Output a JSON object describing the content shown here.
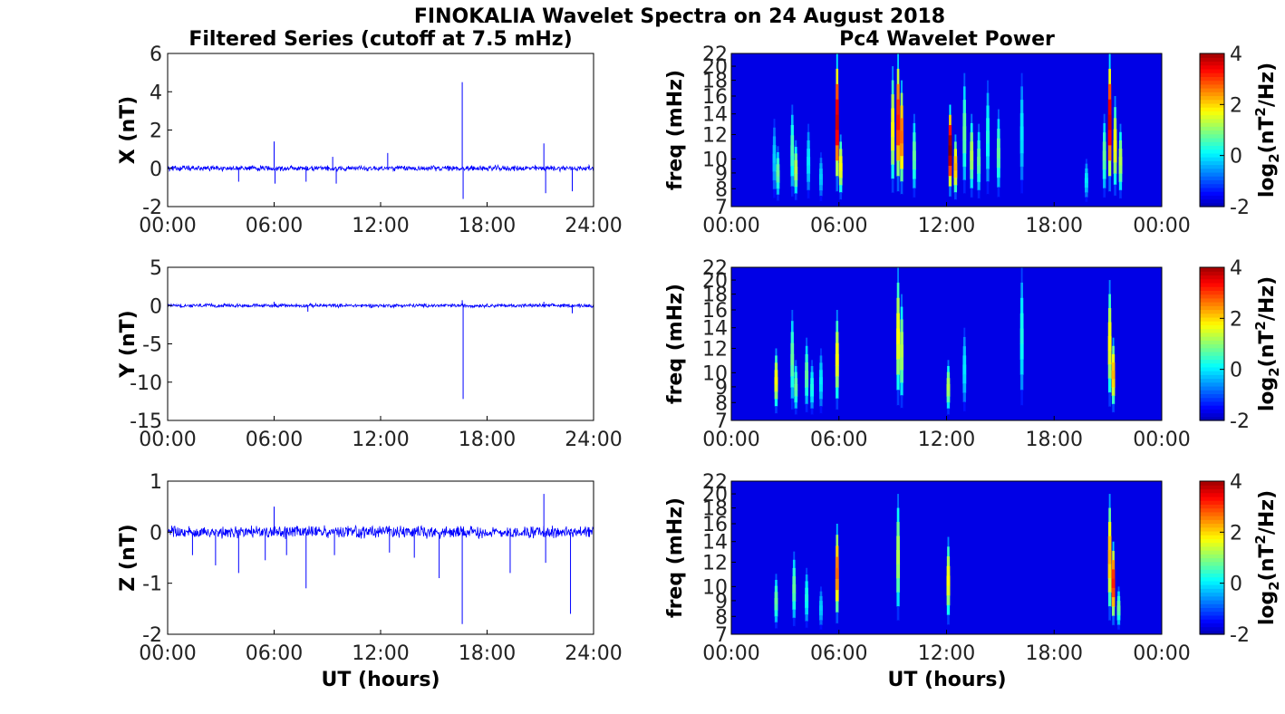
{
  "figure": {
    "title": "FINOKALIA Wavelet Spectra on 24 August 2018",
    "left_title": "Filtered Series (cutoff at 7.5 mHz)",
    "right_title": "Pc4 Wavelet Power",
    "xlabel": "UT (hours)"
  },
  "chart_data": [
    {
      "type": "line",
      "ylabel": "X (nT)",
      "ylim": [
        -2,
        6
      ],
      "yticks": [
        "-2",
        "0",
        "2",
        "4",
        "6"
      ],
      "yticks_values": [
        -2,
        0,
        2,
        4,
        6
      ],
      "xlim": [
        0,
        24
      ],
      "xticks": [
        "00:00",
        "06:00",
        "12:00",
        "18:00",
        "24:00"
      ],
      "xticks_values": [
        0,
        6,
        12,
        18,
        24
      ],
      "color": "#0000ff",
      "noise_amplitude": 0.12,
      "spikes": [
        {
          "t": 6.0,
          "y": 1.4
        },
        {
          "t": 6.05,
          "y": -0.8
        },
        {
          "t": 4.0,
          "y": -0.7
        },
        {
          "t": 7.8,
          "y": -0.7
        },
        {
          "t": 9.3,
          "y": 0.6
        },
        {
          "t": 9.5,
          "y": -0.8
        },
        {
          "t": 12.4,
          "y": 0.8
        },
        {
          "t": 16.6,
          "y": 4.5
        },
        {
          "t": 16.65,
          "y": -1.6
        },
        {
          "t": 21.2,
          "y": 1.3
        },
        {
          "t": 21.3,
          "y": -1.3
        },
        {
          "t": 22.8,
          "y": -1.2
        }
      ]
    },
    {
      "type": "line",
      "ylabel": "Y (nT)",
      "ylim": [
        -15,
        5
      ],
      "yticks": [
        "-15",
        "-10",
        "-5",
        "0",
        "5"
      ],
      "yticks_values": [
        -15,
        -10,
        -5,
        0,
        5
      ],
      "xlim": [
        0,
        24
      ],
      "xticks": [
        "00:00",
        "06:00",
        "12:00",
        "18:00",
        "24:00"
      ],
      "xticks_values": [
        0,
        6,
        12,
        18,
        24
      ],
      "color": "#0000ff",
      "noise_amplitude": 0.2,
      "spikes": [
        {
          "t": 6.0,
          "y": 0.5
        },
        {
          "t": 7.9,
          "y": -0.8
        },
        {
          "t": 16.6,
          "y": 0.7
        },
        {
          "t": 16.65,
          "y": -12.2
        },
        {
          "t": 21.2,
          "y": 0.5
        },
        {
          "t": 22.8,
          "y": -1.0
        }
      ]
    },
    {
      "type": "line",
      "ylabel": "Z (nT)",
      "ylim": [
        -2,
        1
      ],
      "yticks": [
        "-2",
        "-1",
        "0",
        "1"
      ],
      "yticks_values": [
        -2,
        -1,
        0,
        1
      ],
      "xlim": [
        0,
        24
      ],
      "xticks": [
        "00:00",
        "06:00",
        "12:00",
        "18:00",
        "24:00"
      ],
      "xticks_values": [
        0,
        6,
        12,
        18,
        24
      ],
      "color": "#0000ff",
      "noise_amplitude": 0.1,
      "spikes": [
        {
          "t": 1.4,
          "y": -0.45
        },
        {
          "t": 2.7,
          "y": -0.65
        },
        {
          "t": 4.0,
          "y": -0.8
        },
        {
          "t": 5.5,
          "y": -0.55
        },
        {
          "t": 6.0,
          "y": 0.5
        },
        {
          "t": 6.7,
          "y": -0.45
        },
        {
          "t": 7.8,
          "y": -1.1
        },
        {
          "t": 9.4,
          "y": -0.45
        },
        {
          "t": 12.5,
          "y": -0.4
        },
        {
          "t": 13.9,
          "y": -0.5
        },
        {
          "t": 15.3,
          "y": -0.9
        },
        {
          "t": 16.6,
          "y": -1.8
        },
        {
          "t": 19.3,
          "y": -0.8
        },
        {
          "t": 21.2,
          "y": 0.75
        },
        {
          "t": 21.3,
          "y": -0.6
        },
        {
          "t": 22.7,
          "y": -1.6
        }
      ]
    },
    {
      "type": "heatmap",
      "ylabel": "freq (mHz)",
      "ylim": [
        7,
        22
      ],
      "yticks": [
        "7",
        "8",
        "9",
        "10",
        "12",
        "14",
        "16",
        "18",
        "20",
        "22"
      ],
      "yticks_values": [
        7,
        8,
        9,
        10,
        12,
        14,
        16,
        18,
        20,
        22
      ],
      "xlim": [
        0,
        24
      ],
      "xticks": [
        "00:00",
        "06:00",
        "12:00",
        "18:00",
        "00:00"
      ],
      "xticks_values": [
        0,
        6,
        12,
        18,
        24
      ],
      "colorbar_label": "log2(nT²/Hz)",
      "clim": [
        -2,
        4
      ],
      "cticks": [
        "-2",
        "0",
        "2",
        "4"
      ],
      "cticks_values": [
        -2,
        0,
        2,
        4
      ],
      "background_value": -2,
      "streaks": [
        {
          "t": 2.4,
          "fmax": 13.5,
          "peak": -0.5
        },
        {
          "t": 2.6,
          "fmax": 11.0,
          "peak": 0.5
        },
        {
          "t": 3.4,
          "fmax": 15.0,
          "peak": 0.3
        },
        {
          "t": 3.6,
          "fmax": 11.5,
          "peak": 1.0
        },
        {
          "t": 4.3,
          "fmax": 13.0,
          "peak": -0.3
        },
        {
          "t": 5.0,
          "fmax": 10.5,
          "peak": -0.5
        },
        {
          "t": 5.9,
          "fmax": 22.0,
          "peak": 3.5
        },
        {
          "t": 6.1,
          "fmax": 12.0,
          "peak": 1.5
        },
        {
          "t": 9.0,
          "fmax": 20.0,
          "peak": 1.5
        },
        {
          "t": 9.3,
          "fmax": 22.0,
          "peak": 3.0
        },
        {
          "t": 9.5,
          "fmax": 18.0,
          "peak": 2.5
        },
        {
          "t": 10.2,
          "fmax": 14.0,
          "peak": 0.5
        },
        {
          "t": 12.2,
          "fmax": 15.0,
          "peak": 4.0
        },
        {
          "t": 12.5,
          "fmax": 12.0,
          "peak": 2.0
        },
        {
          "t": 13.0,
          "fmax": 19.0,
          "peak": 0.5
        },
        {
          "t": 13.4,
          "fmax": 14.0,
          "peak": 1.0
        },
        {
          "t": 13.8,
          "fmax": 13.0,
          "peak": 0.5
        },
        {
          "t": 14.3,
          "fmax": 18.0,
          "peak": 0.0
        },
        {
          "t": 14.9,
          "fmax": 14.5,
          "peak": 0.5
        },
        {
          "t": 16.2,
          "fmax": 19.0,
          "peak": -0.3
        },
        {
          "t": 19.8,
          "fmax": 10.0,
          "peak": -0.3
        },
        {
          "t": 20.8,
          "fmax": 14.0,
          "peak": 0.5
        },
        {
          "t": 21.1,
          "fmax": 22.0,
          "peak": 3.5
        },
        {
          "t": 21.4,
          "fmax": 16.0,
          "peak": 1.5
        },
        {
          "t": 21.7,
          "fmax": 13.0,
          "peak": 1.0
        }
      ]
    },
    {
      "type": "heatmap",
      "ylabel": "freq (mHz)",
      "ylim": [
        7,
        22
      ],
      "yticks": [
        "7",
        "8",
        "9",
        "10",
        "12",
        "14",
        "16",
        "18",
        "20",
        "22"
      ],
      "yticks_values": [
        7,
        8,
        9,
        10,
        12,
        14,
        16,
        18,
        20,
        22
      ],
      "xlim": [
        0,
        24
      ],
      "xticks": [
        "00:00",
        "06:00",
        "12:00",
        "18:00",
        "00:00"
      ],
      "xticks_values": [
        0,
        6,
        12,
        18,
        24
      ],
      "colorbar_label": "log2(nT²/Hz)",
      "clim": [
        -2,
        4
      ],
      "cticks": [
        "-2",
        "0",
        "2",
        "4"
      ],
      "cticks_values": [
        -2,
        0,
        2,
        4
      ],
      "background_value": -2,
      "streaks": [
        {
          "t": 2.5,
          "fmax": 12.0,
          "peak": 1.5
        },
        {
          "t": 3.4,
          "fmax": 16.0,
          "peak": 0.5
        },
        {
          "t": 3.6,
          "fmax": 11.0,
          "peak": 0.5
        },
        {
          "t": 4.2,
          "fmax": 13.0,
          "peak": 0.5
        },
        {
          "t": 4.5,
          "fmax": 11.0,
          "peak": 0.0
        },
        {
          "t": 5.0,
          "fmax": 12.0,
          "peak": -0.3
        },
        {
          "t": 5.9,
          "fmax": 16.0,
          "peak": 1.5
        },
        {
          "t": 9.3,
          "fmax": 22.0,
          "peak": 1.5
        },
        {
          "t": 9.5,
          "fmax": 18.0,
          "peak": 1.0
        },
        {
          "t": 12.1,
          "fmax": 11.0,
          "peak": 1.0
        },
        {
          "t": 13.0,
          "fmax": 14.0,
          "peak": -0.3
        },
        {
          "t": 16.2,
          "fmax": 22.0,
          "peak": 0.0
        },
        {
          "t": 21.1,
          "fmax": 20.0,
          "peak": 1.5
        },
        {
          "t": 21.3,
          "fmax": 13.0,
          "peak": 2.0
        }
      ]
    },
    {
      "type": "heatmap",
      "ylabel": "freq (mHz)",
      "ylim": [
        7,
        22
      ],
      "yticks": [
        "7",
        "8",
        "9",
        "10",
        "12",
        "14",
        "16",
        "18",
        "20",
        "22"
      ],
      "yticks_values": [
        7,
        8,
        9,
        10,
        12,
        14,
        16,
        18,
        20,
        22
      ],
      "xlim": [
        0,
        24
      ],
      "xticks": [
        "00:00",
        "06:00",
        "12:00",
        "18:00",
        "00:00"
      ],
      "xticks_values": [
        0,
        6,
        12,
        18,
        24
      ],
      "colorbar_label": "log2(nT²/Hz)",
      "clim": [
        -2,
        4
      ],
      "cticks": [
        "-2",
        "0",
        "2",
        "4"
      ],
      "cticks_values": [
        -2,
        0,
        2,
        4
      ],
      "background_value": -2,
      "streaks": [
        {
          "t": 2.5,
          "fmax": 11.0,
          "peak": 0.5
        },
        {
          "t": 3.5,
          "fmax": 13.0,
          "peak": 0.5
        },
        {
          "t": 4.2,
          "fmax": 11.5,
          "peak": 0.0
        },
        {
          "t": 5.0,
          "fmax": 10.0,
          "peak": -0.5
        },
        {
          "t": 5.9,
          "fmax": 16.0,
          "peak": 2.5
        },
        {
          "t": 9.3,
          "fmax": 20.0,
          "peak": 1.0
        },
        {
          "t": 12.1,
          "fmax": 14.5,
          "peak": 1.5
        },
        {
          "t": 21.1,
          "fmax": 20.0,
          "peak": 2.0
        },
        {
          "t": 21.3,
          "fmax": 14.0,
          "peak": 3.0
        },
        {
          "t": 21.6,
          "fmax": 10.0,
          "peak": 0.5
        }
      ]
    }
  ]
}
